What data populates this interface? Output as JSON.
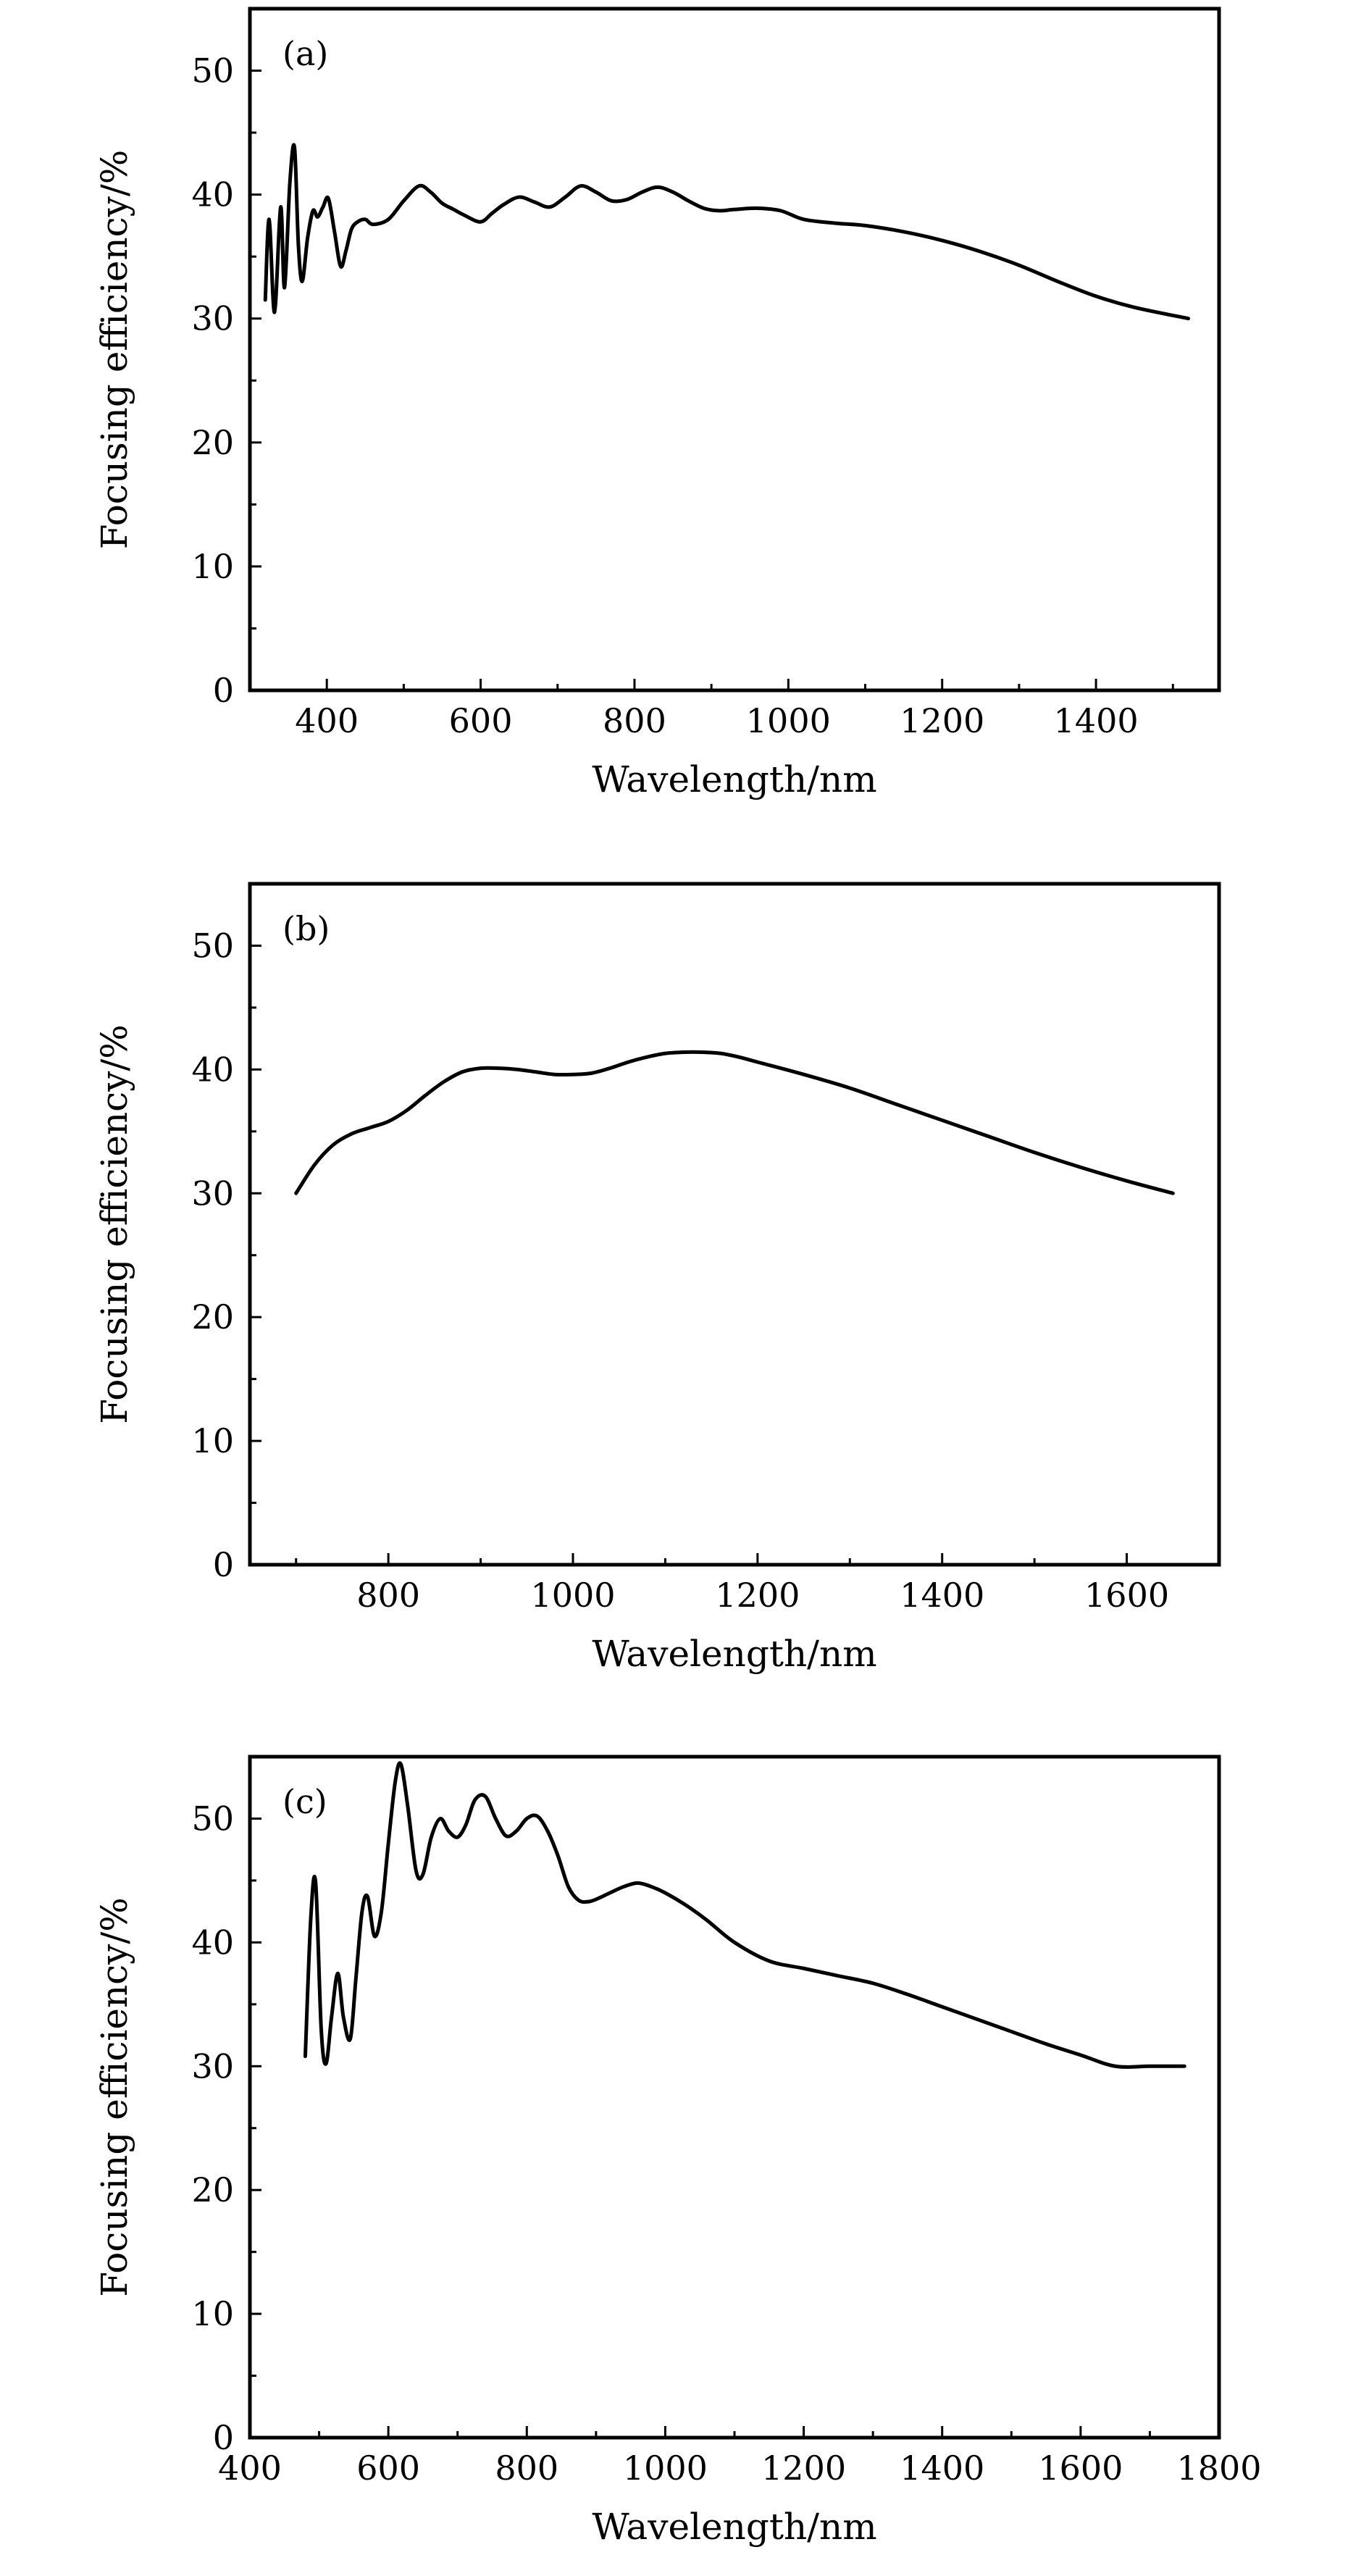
{
  "chart_data": [
    {
      "type": "line",
      "panel_label": "(a)",
      "xlabel": "Wavelength/nm",
      "ylabel": "Focusing efficiency/%",
      "xlim": [
        300,
        1560
      ],
      "ylim": [
        0,
        55
      ],
      "x_ticks": [
        400,
        600,
        800,
        1000,
        1200,
        1400
      ],
      "x_minor_ticks": [
        300,
        500,
        700,
        900,
        1100,
        1300,
        1500
      ],
      "y_ticks": [
        0,
        10,
        20,
        30,
        40,
        50
      ],
      "y_minor_ticks": [
        5,
        15,
        25,
        35,
        45
      ],
      "line_color": "#000000",
      "grid": false,
      "series": [
        {
          "x": [
            320,
            325,
            332,
            340,
            345,
            352,
            358,
            363,
            368,
            375,
            382,
            388,
            395,
            402,
            410,
            418,
            425,
            432,
            440,
            450,
            460,
            480,
            500,
            520,
            535,
            550,
            565,
            580,
            600,
            615,
            630,
            650,
            670,
            690,
            710,
            730,
            750,
            770,
            790,
            810,
            830,
            850,
            870,
            890,
            910,
            930,
            960,
            990,
            1020,
            1060,
            1100,
            1150,
            1200,
            1250,
            1300,
            1350,
            1400,
            1450,
            1520
          ],
          "y": [
            31.5,
            38.0,
            30.5,
            39.0,
            32.5,
            41.0,
            43.8,
            36.0,
            33.0,
            36.5,
            38.7,
            38.2,
            39.0,
            39.7,
            37.0,
            34.2,
            35.5,
            37.2,
            37.8,
            38.0,
            37.6,
            38.0,
            39.5,
            40.7,
            40.2,
            39.3,
            38.8,
            38.3,
            37.8,
            38.5,
            39.2,
            39.8,
            39.4,
            39.0,
            39.8,
            40.7,
            40.2,
            39.5,
            39.6,
            40.2,
            40.6,
            40.2,
            39.5,
            38.9,
            38.7,
            38.8,
            38.9,
            38.7,
            38.0,
            37.7,
            37.5,
            37.0,
            36.3,
            35.4,
            34.3,
            33.0,
            31.8,
            30.9,
            30.0
          ]
        }
      ]
    },
    {
      "type": "line",
      "panel_label": "(b)",
      "xlabel": "Wavelength/nm",
      "ylabel": "Focusing efficiency/%",
      "xlim": [
        650,
        1700
      ],
      "ylim": [
        0,
        55
      ],
      "x_ticks": [
        800,
        1000,
        1200,
        1400,
        1600
      ],
      "x_minor_ticks": [
        700,
        900,
        1100,
        1300,
        1500,
        1700
      ],
      "y_ticks": [
        0,
        10,
        20,
        30,
        40,
        50
      ],
      "y_minor_ticks": [
        5,
        15,
        25,
        35,
        45
      ],
      "line_color": "#000000",
      "grid": false,
      "series": [
        {
          "x": [
            700,
            720,
            740,
            760,
            780,
            800,
            820,
            840,
            860,
            880,
            900,
            920,
            940,
            960,
            980,
            1000,
            1020,
            1040,
            1060,
            1080,
            1100,
            1120,
            1140,
            1160,
            1180,
            1200,
            1250,
            1300,
            1350,
            1400,
            1450,
            1500,
            1550,
            1600,
            1650
          ],
          "y": [
            30.0,
            32.3,
            33.9,
            34.8,
            35.3,
            35.8,
            36.7,
            37.9,
            39.0,
            39.8,
            40.1,
            40.1,
            40.0,
            39.8,
            39.6,
            39.6,
            39.7,
            40.1,
            40.6,
            41.0,
            41.3,
            41.4,
            41.4,
            41.3,
            41.0,
            40.6,
            39.6,
            38.5,
            37.2,
            35.9,
            34.6,
            33.3,
            32.1,
            31.0,
            30.0
          ]
        }
      ]
    },
    {
      "type": "line",
      "panel_label": "(c)",
      "xlabel": "Wavelength/nm",
      "ylabel": "Focusing efficiency/%",
      "xlim": [
        400,
        1800
      ],
      "ylim": [
        0,
        55
      ],
      "x_ticks": [
        400,
        600,
        800,
        1000,
        1200,
        1400,
        1600,
        1800
      ],
      "x_minor_ticks": [
        500,
        700,
        900,
        1100,
        1300,
        1500,
        1700
      ],
      "y_ticks": [
        0,
        10,
        20,
        30,
        40,
        50
      ],
      "y_minor_ticks": [
        5,
        15,
        25,
        35,
        45
      ],
      "line_color": "#000000",
      "grid": false,
      "series": [
        {
          "x": [
            480,
            488,
            495,
            503,
            510,
            518,
            527,
            535,
            545,
            553,
            562,
            570,
            580,
            590,
            600,
            610,
            618,
            628,
            640,
            650,
            662,
            675,
            687,
            700,
            712,
            725,
            740,
            755,
            770,
            785,
            800,
            815,
            830,
            845,
            860,
            875,
            890,
            905,
            920,
            940,
            960,
            980,
            1000,
            1030,
            1060,
            1100,
            1150,
            1200,
            1250,
            1300,
            1350,
            1400,
            1450,
            1500,
            1550,
            1600,
            1650,
            1700,
            1750
          ],
          "y": [
            30.8,
            42.0,
            44.8,
            33.0,
            30.2,
            34.0,
            37.5,
            34.0,
            32.2,
            37.0,
            42.5,
            43.7,
            40.5,
            42.5,
            48.0,
            53.0,
            54.4,
            51.0,
            45.8,
            45.5,
            48.5,
            50.0,
            49.0,
            48.5,
            49.5,
            51.5,
            51.8,
            50.0,
            48.6,
            49.0,
            50.0,
            50.2,
            49.0,
            47.0,
            44.5,
            43.4,
            43.3,
            43.6,
            44.0,
            44.5,
            44.8,
            44.5,
            44.0,
            43.0,
            41.8,
            40.0,
            38.5,
            37.9,
            37.3,
            36.7,
            35.8,
            34.8,
            33.8,
            32.8,
            31.8,
            30.9,
            30.0,
            30.0,
            30.0
          ]
        }
      ]
    }
  ]
}
